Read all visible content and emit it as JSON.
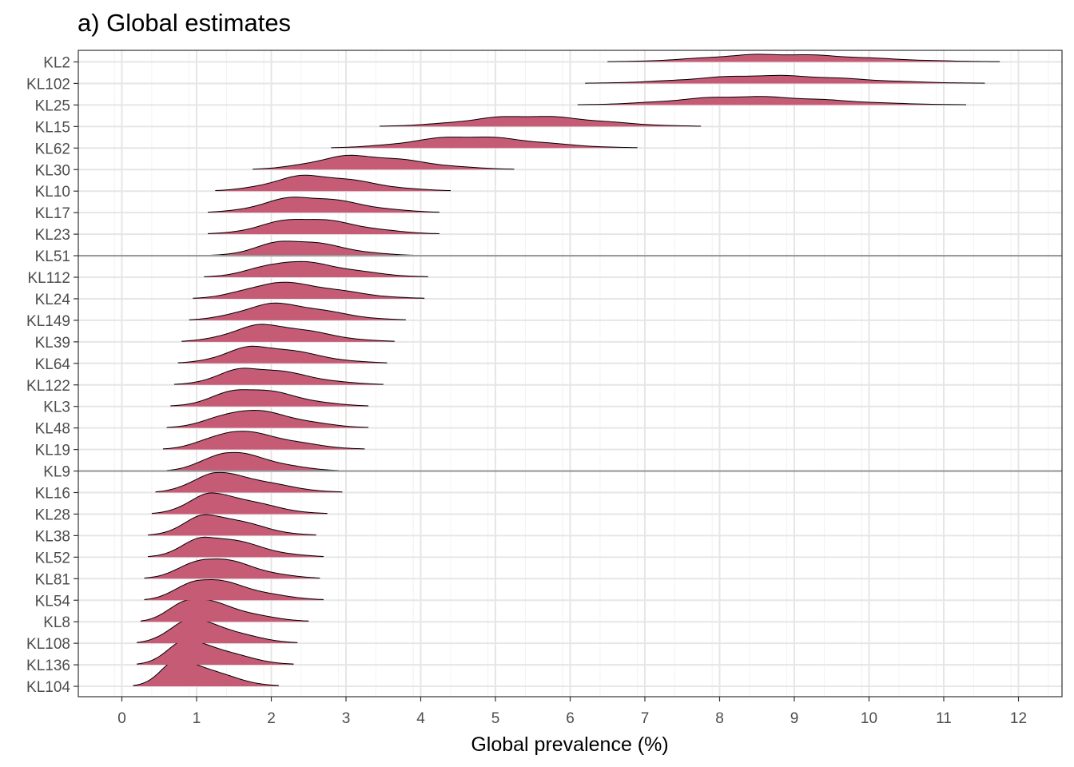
{
  "chart_data": {
    "type": "ridgeline",
    "title": "a) Global estimates",
    "xlabel": "Global prevalence (%)",
    "ylabel": "",
    "xlim": [
      -0.6,
      12.6
    ],
    "xticks": [
      0,
      1,
      2,
      3,
      4,
      5,
      6,
      7,
      8,
      9,
      10,
      11,
      12
    ],
    "grid": true,
    "fill_color": "#c65b76",
    "outline_color": "#000000",
    "reference_line_color": "#9a9a9a",
    "reference_lines_at": [
      "KL51",
      "KL9"
    ],
    "series": [
      {
        "name": "KL2",
        "mode": 8.7,
        "min": 6.5,
        "max": 11.75,
        "peak": 0.45
      },
      {
        "name": "KL102",
        "mode": 8.6,
        "min": 6.2,
        "max": 11.55,
        "peak": 0.47
      },
      {
        "name": "KL25",
        "mode": 8.3,
        "min": 6.1,
        "max": 11.3,
        "peak": 0.5
      },
      {
        "name": "KL15",
        "mode": 5.4,
        "min": 3.45,
        "max": 7.75,
        "peak": 0.62
      },
      {
        "name": "KL62",
        "mode": 4.6,
        "min": 2.8,
        "max": 6.9,
        "peak": 0.68
      },
      {
        "name": "KL30",
        "mode": 3.1,
        "min": 1.75,
        "max": 5.25,
        "peak": 0.82
      },
      {
        "name": "KL10",
        "mode": 2.5,
        "min": 1.25,
        "max": 4.4,
        "peak": 0.92
      },
      {
        "name": "KL17",
        "mode": 2.4,
        "min": 1.15,
        "max": 4.25,
        "peak": 0.93
      },
      {
        "name": "KL23",
        "mode": 2.4,
        "min": 1.15,
        "max": 4.25,
        "peak": 0.93
      },
      {
        "name": "KL51",
        "mode": 2.25,
        "min": 1.2,
        "max": 3.9,
        "peak": 0.9
      },
      {
        "name": "KL112",
        "mode": 2.25,
        "min": 1.1,
        "max": 4.1,
        "peak": 0.93
      },
      {
        "name": "KL24",
        "mode": 2.1,
        "min": 0.95,
        "max": 4.05,
        "peak": 0.95
      },
      {
        "name": "KL149",
        "mode": 2.05,
        "min": 0.9,
        "max": 3.8,
        "peak": 0.98
      },
      {
        "name": "KL39",
        "mode": 1.9,
        "min": 0.8,
        "max": 3.65,
        "peak": 1.0
      },
      {
        "name": "KL64",
        "mode": 1.8,
        "min": 0.75,
        "max": 3.55,
        "peak": 1.0
      },
      {
        "name": "KL122",
        "mode": 1.7,
        "min": 0.7,
        "max": 3.5,
        "peak": 1.0
      },
      {
        "name": "KL3",
        "mode": 1.65,
        "min": 0.65,
        "max": 3.3,
        "peak": 1.05
      },
      {
        "name": "KL48",
        "mode": 1.65,
        "min": 0.6,
        "max": 3.3,
        "peak": 1.05
      },
      {
        "name": "KL19",
        "mode": 1.5,
        "min": 0.55,
        "max": 3.25,
        "peak": 1.07
      },
      {
        "name": "KL9",
        "mode": 1.4,
        "min": 0.6,
        "max": 2.9,
        "peak": 1.1
      },
      {
        "name": "KL16",
        "mode": 1.25,
        "min": 0.45,
        "max": 2.95,
        "peak": 1.15
      },
      {
        "name": "KL28",
        "mode": 1.2,
        "min": 0.4,
        "max": 2.75,
        "peak": 1.2
      },
      {
        "name": "KL38",
        "mode": 1.15,
        "min": 0.35,
        "max": 2.6,
        "peak": 1.22
      },
      {
        "name": "KL52",
        "mode": 1.15,
        "min": 0.35,
        "max": 2.7,
        "peak": 1.22
      },
      {
        "name": "KL81",
        "mode": 1.15,
        "min": 0.3,
        "max": 2.65,
        "peak": 1.22
      },
      {
        "name": "KL54",
        "mode": 1.05,
        "min": 0.3,
        "max": 2.7,
        "peak": 1.25
      },
      {
        "name": "KL8",
        "mode": 0.9,
        "min": 0.25,
        "max": 2.5,
        "peak": 1.35
      },
      {
        "name": "KL108",
        "mode": 0.9,
        "min": 0.2,
        "max": 2.35,
        "peak": 1.38
      },
      {
        "name": "KL136",
        "mode": 0.85,
        "min": 0.2,
        "max": 2.3,
        "peak": 1.4
      },
      {
        "name": "KL104",
        "mode": 0.75,
        "min": 0.15,
        "max": 2.1,
        "peak": 1.5
      }
    ]
  }
}
